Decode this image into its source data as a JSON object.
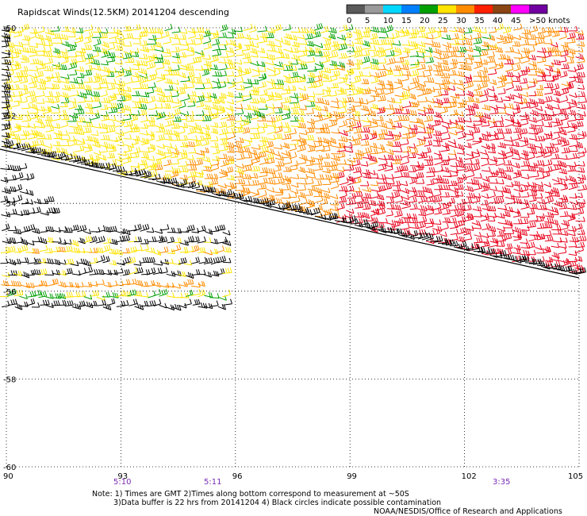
{
  "title": "Rapidscat Winds(12.5KM) 20141204 descending",
  "legend": {
    "labels": [
      "0",
      "5",
      "10",
      "15",
      "20",
      "25",
      "30",
      "35",
      "40",
      "45",
      ">50 knots"
    ],
    "colors": [
      "#5a5a5a",
      "#9a9a9a",
      "#00d8ff",
      "#0080ff",
      "#00a000",
      "#ffe400",
      "#ff8c00",
      "#ff2000",
      "#8b4513",
      "#ff00ff",
      "#7000a0"
    ]
  },
  "axes": {
    "lon_ticks": [
      "90",
      "93",
      "96",
      "99",
      "102",
      "105"
    ],
    "lat_ticks": [
      "-50",
      "-52",
      "-54",
      "-56",
      "-58",
      "-60"
    ]
  },
  "time_labels": [
    "5:10",
    "5:11",
    "3:35"
  ],
  "notes": {
    "line1": "Note: 1) Times are GMT 2)Times along bottom correspond to measurement at ~50S",
    "line2": "3)Data buffer is 22 hrs from 20141204 4) Black circles indicate possible contamination",
    "credit": "NOAA/NESDIS/Office of Research and Applications"
  },
  "colors": {
    "grid": "#000000",
    "time_label": "#7b2bb5",
    "wind_light": "#ffe400",
    "wind_moderate": "#ff8c00",
    "wind_strong": "#e8001a",
    "wind_low": "#00a000",
    "wind_contaminated": "#000000"
  }
}
